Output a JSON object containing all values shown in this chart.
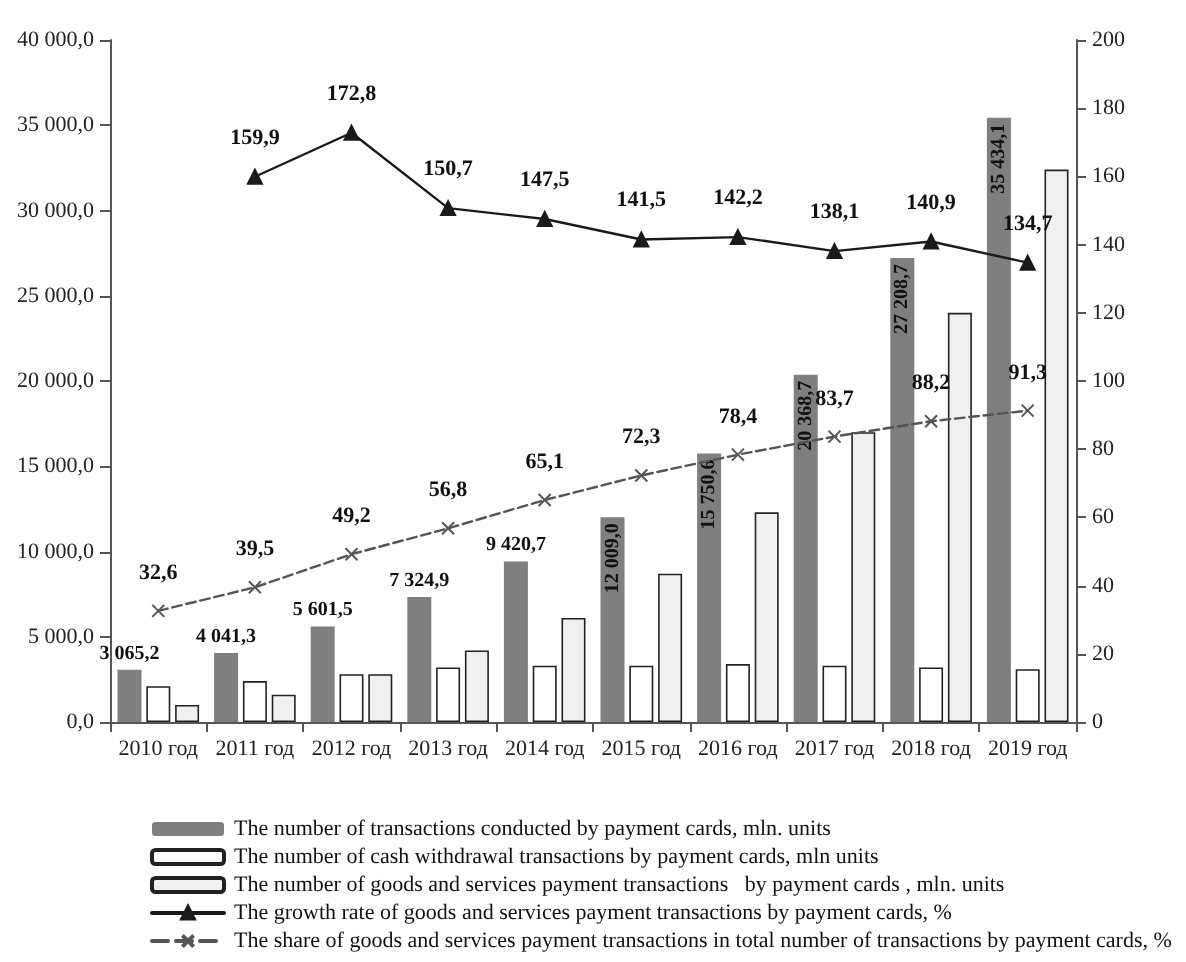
{
  "chart_data": {
    "type": "bar",
    "categories": [
      "2010 год",
      "2011 год",
      "2012 год",
      "2013 год",
      "2014 год",
      "2015 год",
      "2016 год",
      "2017 год",
      "2018 год",
      "2019 год"
    ],
    "series": [
      {
        "name": "The number of transactions conducted by payment cards, mln. units",
        "color": "#7f7f7f",
        "values": [
          3065.2,
          4041.3,
          5601.5,
          7324.9,
          9420.7,
          12009.0,
          15750.6,
          20368.7,
          27208.7,
          35434.1
        ],
        "value_labels": [
          "3 065,2",
          "4 041,3",
          "5 601,5",
          "7 324,9",
          "9 420,7",
          "12 009,0",
          "15 750,6",
          "20 368,7",
          "27 208,7",
          "35 434,1"
        ]
      },
      {
        "name": "The number of cash withdrawal transactions by payment cards, mln units",
        "color": "#ffffff",
        "values": [
          2100,
          2400,
          2800,
          3200,
          3300,
          3300,
          3400,
          3300,
          3200,
          3100
        ]
      },
      {
        "name": "The number of goods and services payment transactions   by payment cards , mln. units",
        "color": "#f0f0f0",
        "values": [
          1000,
          1600,
          2800,
          4200,
          6100,
          8700,
          12300,
          17000,
          24000,
          32400
        ]
      },
      {
        "name": "The growth rate of goods and services payment transactions by payment cards, %",
        "type": "line",
        "axis": "y2",
        "color": "#1a1a1a",
        "marker": "triangle",
        "line_style": "solid",
        "values": [
          null,
          159.9,
          172.8,
          150.7,
          147.5,
          141.5,
          142.2,
          138.1,
          140.9,
          134.7
        ],
        "value_labels": [
          null,
          "159,9",
          "172,8",
          "150,7",
          "147,5",
          "141,5",
          "142,2",
          "138,1",
          "140,9",
          "134,7"
        ]
      },
      {
        "name": "The share of goods and services payment transactions in total number of transactions by payment cards, %",
        "type": "line",
        "axis": "y2",
        "color": "#555555",
        "marker": "cross",
        "line_style": "dashed",
        "values": [
          32.6,
          39.5,
          49.2,
          56.8,
          65.1,
          72.3,
          78.4,
          83.7,
          88.2,
          91.3
        ],
        "value_labels": [
          "32,6",
          "39,5",
          "49,2",
          "56,8",
          "65,1",
          "72,3",
          "78,4",
          "83,7",
          "88,2",
          "91,3"
        ]
      }
    ],
    "ylim": [
      0,
      40000
    ],
    "yticks": [
      {
        "value": 0,
        "label": "0,0"
      },
      {
        "value": 5000,
        "label": "5 000,0"
      },
      {
        "value": 10000,
        "label": "10 000,0"
      },
      {
        "value": 15000,
        "label": "15 000,0"
      },
      {
        "value": 20000,
        "label": "20 000,0"
      },
      {
        "value": 25000,
        "label": "25 000,0"
      },
      {
        "value": 30000,
        "label": "30 000,0"
      },
      {
        "value": 35000,
        "label": "35 000,0"
      },
      {
        "value": 40000,
        "label": "40 000,0"
      }
    ],
    "y2lim": [
      0,
      200
    ],
    "y2ticks": [
      0,
      20,
      40,
      60,
      80,
      100,
      120,
      140,
      160,
      180,
      200
    ],
    "grid": false,
    "legend": "bottom"
  }
}
